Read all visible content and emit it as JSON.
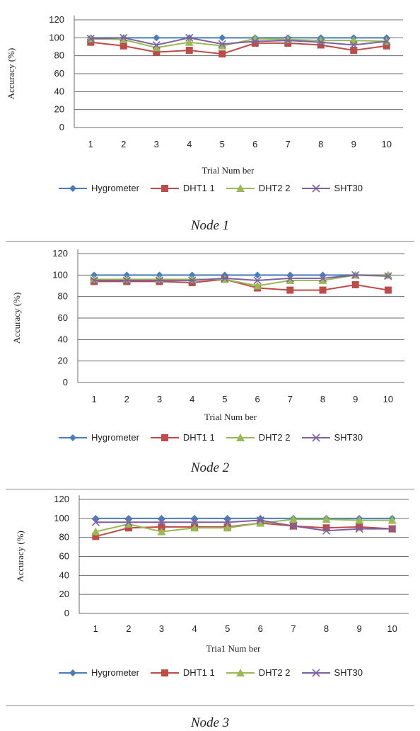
{
  "chart_data": [
    {
      "type": "line",
      "caption": "Node 1",
      "xlabel": "Trial Num ber",
      "ylabel": "Accuracy  (%)",
      "ylim": [
        0,
        120
      ],
      "yticks": [
        "0",
        "20",
        "40",
        "60",
        "80",
        "100",
        "120"
      ],
      "categories": [
        "1",
        "2",
        "3",
        "4",
        "5",
        "6",
        "7",
        "8",
        "9",
        "10"
      ],
      "grid": true,
      "legend_position": "bottom",
      "series": [
        {
          "name": "Hygrometer",
          "color": "#4a7ebb",
          "marker": "diamond",
          "values": [
            100,
            100,
            100,
            100,
            100,
            100,
            100,
            100,
            100,
            100
          ]
        },
        {
          "name": "DHT1 1",
          "color": "#be4b48",
          "marker": "square",
          "values": [
            95,
            91,
            84,
            86,
            82,
            94,
            94,
            92,
            86,
            91
          ]
        },
        {
          "name": "DHT2 2",
          "color": "#98b954",
          "marker": "triangle",
          "values": [
            99,
            98,
            89,
            95,
            91,
            99,
            98,
            97,
            97,
            96
          ]
        },
        {
          "name": "SHT30",
          "color": "#7d60a0",
          "marker": "x",
          "values": [
            99,
            100,
            92,
            100,
            93,
            96,
            97,
            95,
            92,
            96
          ]
        }
      ]
    },
    {
      "type": "line",
      "caption": "Node 2",
      "xlabel": "Trial Num ber",
      "ylabel": "Accuracy  (%)",
      "ylim": [
        0,
        120
      ],
      "yticks": [
        "0",
        "20",
        "40",
        "60",
        "80",
        "100",
        "120"
      ],
      "categories": [
        "1",
        "2",
        "3",
        "4",
        "5",
        "6",
        "7",
        "8",
        "9",
        "10"
      ],
      "grid": true,
      "legend_position": "bottom",
      "series": [
        {
          "name": "Hygrometer",
          "color": "#4a7ebb",
          "marker": "diamond",
          "values": [
            100,
            100,
            100,
            100,
            100,
            100,
            100,
            100,
            100,
            100
          ]
        },
        {
          "name": "DHT1 1",
          "color": "#be4b48",
          "marker": "square",
          "values": [
            94,
            94,
            94,
            93,
            96,
            88,
            86,
            86,
            91,
            86
          ]
        },
        {
          "name": "DHT2 2",
          "color": "#98b954",
          "marker": "triangle",
          "values": [
            96,
            96,
            96,
            96,
            96,
            90,
            95,
            95,
            100,
            100
          ]
        },
        {
          "name": "SHT30",
          "color": "#7d60a0",
          "marker": "x",
          "values": [
            95,
            95,
            95,
            95,
            97,
            95,
            97,
            97,
            100,
            99
          ]
        }
      ]
    },
    {
      "type": "line",
      "caption": "Node 3",
      "xlabel": "Tria1 Num ber",
      "ylabel": "Accuracy  (%)",
      "ylim": [
        0,
        120
      ],
      "yticks": [
        "0",
        "20",
        "40",
        "60",
        "80",
        "100",
        "120"
      ],
      "categories": [
        "1",
        "2",
        "3",
        "4",
        "5",
        "6",
        "7",
        "8",
        "9",
        "10"
      ],
      "grid": true,
      "legend_position": "bottom",
      "series": [
        {
          "name": "Hygrometer",
          "color": "#4a7ebb",
          "marker": "diamond",
          "values": [
            100,
            100,
            100,
            100,
            100,
            100,
            100,
            100,
            100,
            100
          ]
        },
        {
          "name": "DHT1 1",
          "color": "#be4b48",
          "marker": "square",
          "values": [
            81,
            90,
            91,
            91,
            91,
            95,
            92,
            90,
            91,
            89
          ]
        },
        {
          "name": "DHT2 2",
          "color": "#98b954",
          "marker": "triangle",
          "values": [
            86,
            94,
            86,
            90,
            90,
            95,
            99,
            99,
            98,
            98
          ]
        },
        {
          "name": "SHT30",
          "color": "#7d60a0",
          "marker": "x",
          "values": [
            96,
            96,
            96,
            96,
            96,
            98,
            92,
            87,
            89,
            89
          ]
        }
      ]
    }
  ]
}
